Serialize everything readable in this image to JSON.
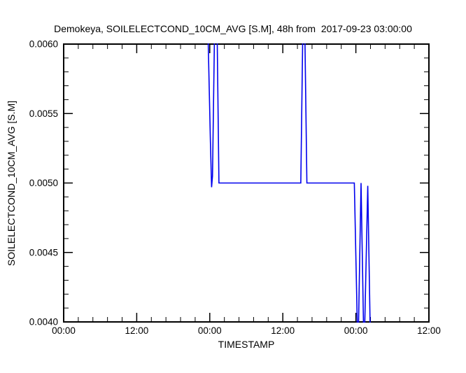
{
  "window": {
    "background": "#ffffff",
    "foreground": "#000000"
  },
  "chart_data": {
    "type": "line",
    "title": "Demokeya, SOILELECTCOND_10CM_AVG [S.M], 48h from  2017-09-23 03:00:00",
    "xlabel": "TIMESTAMP",
    "ylabel": "SOILELECTCOND_10CM_AVG [S.M]",
    "xlim": [
      0,
      60
    ],
    "ylim": [
      0.004,
      0.006
    ],
    "grid": false,
    "legend": false,
    "line_color": "#0000ee",
    "axis_color": "#000000",
    "x_axis": {
      "unit": "hours since 2017-09-23 00:00",
      "major_ticks": [
        0,
        12,
        24,
        36,
        48,
        60
      ],
      "tick_labels": [
        "00:00",
        "12:00",
        "00:00",
        "12:00",
        "00:00",
        "12:00"
      ],
      "minor_ticks_per_interval": 4
    },
    "y_axis": {
      "major_ticks": [
        0.004,
        0.0045,
        0.005,
        0.0055,
        0.006
      ],
      "tick_labels": [
        "0.0040",
        "0.0045",
        "0.0050",
        "0.0055",
        "0.0060"
      ],
      "minor_ticks_per_interval": 4
    },
    "series": [
      {
        "name": "SOILELECTCOND_10CM_AVG",
        "clipping": "points outside ylim are off-scale and clipped at the plot box",
        "points": [
          [
            3.0,
            0.0063
          ],
          [
            23.6,
            0.0063
          ],
          [
            24.1,
            0.0053
          ],
          [
            24.3,
            0.00497
          ],
          [
            24.45,
            0.00505
          ],
          [
            24.85,
            0.0063
          ],
          [
            25.15,
            0.0063
          ],
          [
            25.5,
            0.005
          ],
          [
            38.95,
            0.005
          ],
          [
            39.3,
            0.00615
          ],
          [
            39.6,
            0.00615
          ],
          [
            39.95,
            0.005
          ],
          [
            47.75,
            0.005
          ],
          [
            48.35,
            0.00375
          ],
          [
            48.85,
            0.005
          ],
          [
            49.35,
            0.00375
          ],
          [
            49.95,
            0.00498
          ],
          [
            50.45,
            0.0037
          ],
          [
            51.0,
            0.0037
          ]
        ]
      }
    ]
  }
}
